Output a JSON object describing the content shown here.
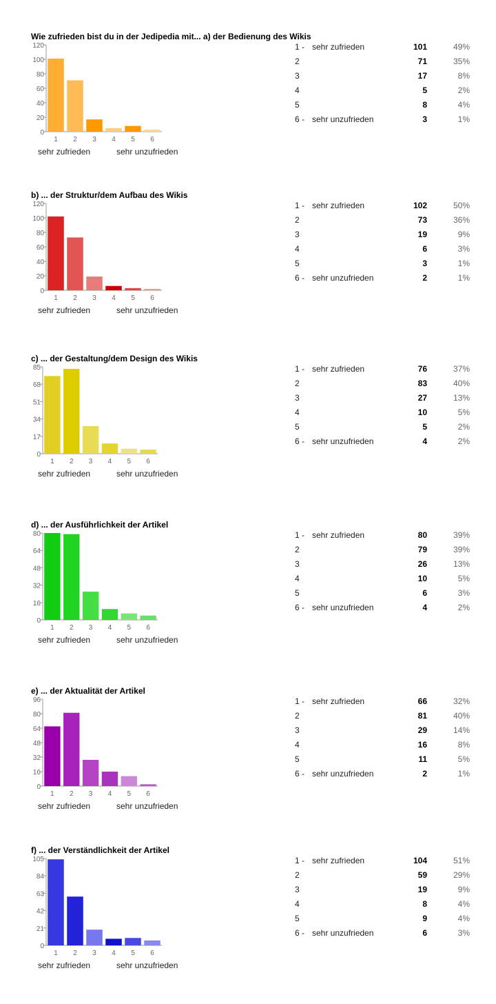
{
  "scale_labels": [
    "1 -",
    "2",
    "3",
    "4",
    "5",
    "6 -"
  ],
  "scale_text": [
    "sehr zufrieden",
    "",
    "",
    "",
    "",
    "sehr unzufrieden"
  ],
  "end_label_left": "sehr zufrieden",
  "end_label_right": "sehr unzufrieden",
  "chart_data": [
    {
      "type": "bar",
      "title": "Wie zufrieden bist du in der Jedipedia mit... a) der Bedienung des Wikis",
      "categories": [
        "1",
        "2",
        "3",
        "4",
        "5",
        "6"
      ],
      "values": [
        101,
        71,
        17,
        5,
        8,
        3
      ],
      "percentages": [
        "49%",
        "35%",
        "8%",
        "2%",
        "4%",
        "1%"
      ],
      "yticks": [
        0,
        20,
        40,
        60,
        80,
        100,
        120
      ],
      "ylim": [
        0,
        120
      ],
      "colors": [
        "#ffad33",
        "#ffbb55",
        "#ff9900",
        "#ffcc88",
        "#ff9900",
        "#ffd699"
      ]
    },
    {
      "type": "bar",
      "title": "b) ... der Struktur/dem Aufbau des Wikis",
      "categories": [
        "1",
        "2",
        "3",
        "4",
        "5",
        "6"
      ],
      "values": [
        102,
        73,
        19,
        6,
        3,
        2
      ],
      "percentages": [
        "50%",
        "36%",
        "9%",
        "3%",
        "1%",
        "1%"
      ],
      "yticks": [
        0,
        20,
        40,
        60,
        80,
        100,
        120
      ],
      "ylim": [
        0,
        120
      ],
      "colors": [
        "#dc2222",
        "#e35555",
        "#ea7b7b",
        "#cc0000",
        "#e14444",
        "#ee9999"
      ]
    },
    {
      "type": "bar",
      "title": "c) ... der Gestaltung/dem Design des Wikis",
      "categories": [
        "1",
        "2",
        "3",
        "4",
        "5",
        "6"
      ],
      "values": [
        76,
        83,
        27,
        10,
        5,
        4
      ],
      "percentages": [
        "37%",
        "40%",
        "13%",
        "5%",
        "2%",
        "2%"
      ],
      "yticks": [
        0,
        17,
        34,
        51,
        68,
        85
      ],
      "ylim": [
        0,
        85
      ],
      "colors": [
        "#e0cf22",
        "#ddcc00",
        "#e8db55",
        "#e2d433",
        "#ece388",
        "#e6da55"
      ]
    },
    {
      "type": "bar",
      "title": "d) ... der Ausführlichkeit der Artikel",
      "categories": [
        "1",
        "2",
        "3",
        "4",
        "5",
        "6"
      ],
      "values": [
        80,
        79,
        26,
        10,
        6,
        4
      ],
      "percentages": [
        "39%",
        "39%",
        "13%",
        "5%",
        "3%",
        "2%"
      ],
      "yticks": [
        0,
        16,
        32,
        48,
        64,
        80
      ],
      "ylim": [
        0,
        80
      ],
      "colors": [
        "#11cc11",
        "#22d422",
        "#44dd44",
        "#33d633",
        "#77e677",
        "#66e066"
      ]
    },
    {
      "type": "bar",
      "title": "e) ... der Aktualität der Artikel",
      "categories": [
        "1",
        "2",
        "3",
        "4",
        "5",
        "6"
      ],
      "values": [
        66,
        81,
        29,
        16,
        11,
        2
      ],
      "percentages": [
        "32%",
        "40%",
        "14%",
        "8%",
        "5%",
        "1%"
      ],
      "yticks": [
        0,
        16,
        32,
        48,
        64,
        80,
        96
      ],
      "ylim": [
        0,
        96
      ],
      "colors": [
        "#9900aa",
        "#a622bb",
        "#b444c4",
        "#aa33bb",
        "#cc88d8",
        "#b855c8"
      ]
    },
    {
      "type": "bar",
      "title": "f) ... der Verständlichkeit der Artikel",
      "categories": [
        "1",
        "2",
        "3",
        "4",
        "5",
        "6"
      ],
      "values": [
        104,
        59,
        19,
        8,
        9,
        6
      ],
      "percentages": [
        "51%",
        "29%",
        "9%",
        "4%",
        "4%",
        "3%"
      ],
      "yticks": [
        0,
        21,
        42,
        63,
        84,
        105
      ],
      "ylim": [
        0,
        105
      ],
      "colors": [
        "#3838e0",
        "#2222d8",
        "#7777ee",
        "#1111cc",
        "#4a4ae2",
        "#8888ee"
      ]
    }
  ]
}
